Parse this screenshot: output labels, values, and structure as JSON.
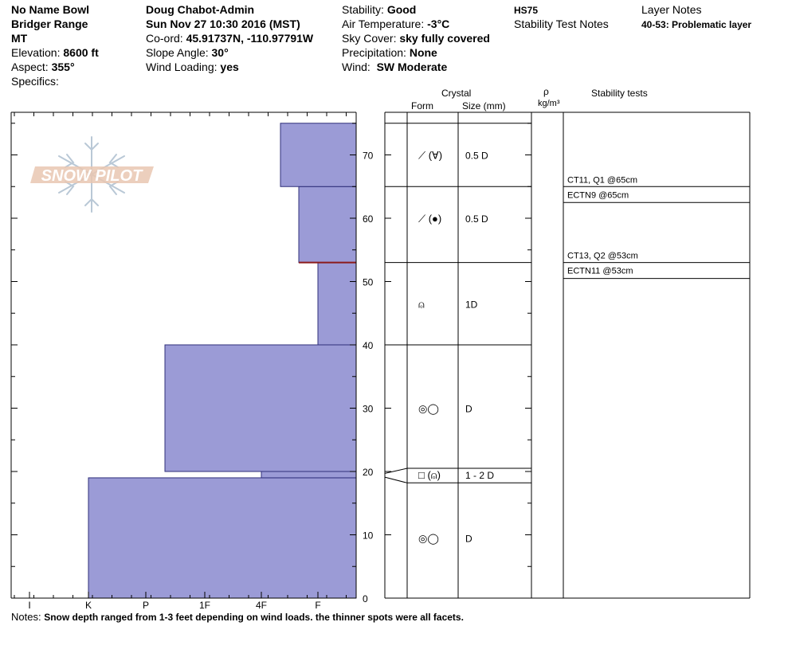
{
  "header": {
    "location": "No Name Bowl",
    "range": "Bridger Range",
    "state": "MT",
    "elevation_label": "Elevation:",
    "elevation_value": "8600 ft",
    "aspect_label": "Aspect:",
    "aspect_value": "355°",
    "specifics_label": "Specifics:",
    "observer": "Doug Chabot-Admin",
    "datetime": "Sun Nov 27 10:30 2016 (MST)",
    "coord_label": "Co-ord:",
    "coord_value": "45.91737N, -110.97791W",
    "slope_label": "Slope Angle:",
    "slope_value": "30°",
    "windload_label": "Wind Loading:",
    "windload_value": "yes",
    "stability_label": "Stability:",
    "stability_value": "Good",
    "airtemp_label": "Air Temperature:",
    "airtemp_value": "-3°C",
    "sky_label": "Sky Cover:",
    "sky_value": "sky fully covered",
    "precip_label": "Precipitation:",
    "precip_value": "None",
    "wind_label": "Wind:",
    "wind_value": "SW Moderate",
    "hs": "HS75",
    "stability_test_notes": "Stability Test Notes",
    "layer_notes_title": "Layer Notes",
    "layer_note_depth": "40-53:",
    "layer_note_text": "Problematic layer"
  },
  "columns": {
    "crystal": "Crystal",
    "form": "Form",
    "size": "Size (mm)",
    "rho": "ρ",
    "density_unit": "kg/m³",
    "stability_tests": "Stability tests"
  },
  "logo_text": "SNOW PILOT",
  "notes_label": "Notes:",
  "notes_text": "Snow depth ranged from 1-3 feet depending on wind loads. the thinner spots were all facets.",
  "colors": {
    "layer_fill": "#9b9bd6",
    "layer_stroke": "#2f2f7a",
    "problem_line": "#8b1a1a",
    "logo": "#e9c7b2",
    "flake": "#b9c8d6"
  },
  "chart_data": {
    "type": "bar",
    "orientation": "horizontal",
    "x_categories": [
      "I",
      "K",
      "P",
      "1F",
      "4F",
      "F"
    ],
    "y_ticks": [
      0,
      10,
      20,
      30,
      40,
      50,
      60,
      70
    ],
    "ylim": [
      0,
      75
    ],
    "layers": [
      {
        "bottom": 0,
        "top": 19,
        "hardness": "K"
      },
      {
        "bottom": 19,
        "top": 20,
        "hardness": "4F"
      },
      {
        "bottom": 20,
        "top": 40,
        "hardness": "P-"
      },
      {
        "bottom": 40,
        "top": 53,
        "hardness": "F"
      },
      {
        "bottom": 53,
        "top": 65,
        "hardness": "F+"
      },
      {
        "bottom": 65,
        "top": 75,
        "hardness": "4F-"
      }
    ],
    "problematic_depth": 53,
    "crystals": [
      {
        "depth": 70,
        "form": "⟋ (∀)",
        "size": "0.5 D"
      },
      {
        "depth": 60,
        "form": "⟋ (●)",
        "size": "0.5 D"
      },
      {
        "depth": 46.5,
        "form": "⍝",
        "size": "1D"
      },
      {
        "depth": 30,
        "form": "◎◯",
        "size": "D"
      },
      {
        "depth": 19.5,
        "form": "□ (⍝)",
        "size": "1 - 2 D"
      },
      {
        "depth": 9.5,
        "form": "◎◯",
        "size": "D"
      }
    ],
    "stability_tests": [
      {
        "depth": 65,
        "result": "CT11, Q1 @65cm",
        "position": "above"
      },
      {
        "depth": 65,
        "result": "ECTN9 @65cm",
        "position": "below"
      },
      {
        "depth": 53,
        "result": "CT13, Q2 @53cm",
        "position": "above"
      },
      {
        "depth": 53,
        "result": "ECTN11 @53cm",
        "position": "below"
      }
    ]
  }
}
